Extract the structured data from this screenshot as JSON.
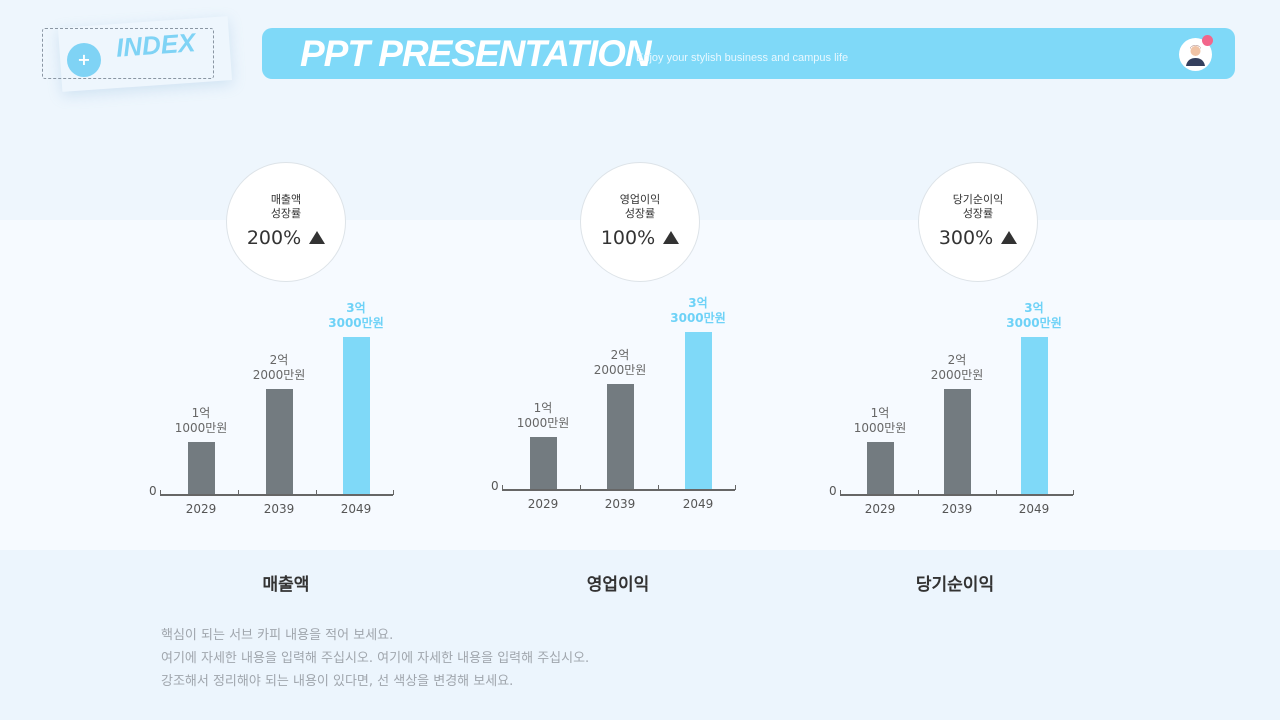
{
  "header": {
    "index_label": "INDEX",
    "title": "PPT PRESENTATION",
    "subtitle": "Enjoy your stylish business and campus life"
  },
  "colors": {
    "accent": "#7fd9f8",
    "bar_gray": "#737b80",
    "bar_highlight": "#7fd9f8",
    "notification": "#f2668b"
  },
  "icons": {
    "index": "plus-icon",
    "avatar": "user-avatar-icon",
    "growth": "triangle-up-icon"
  },
  "chart_data": [
    {
      "type": "bar",
      "title": "매출액",
      "categories": [
        "2029",
        "2039",
        "2049"
      ],
      "values": [
        11000,
        22000,
        33000
      ],
      "unit": "만원",
      "data_labels": [
        [
          "1억",
          "1000만원"
        ],
        [
          "2억",
          "2000만원"
        ],
        [
          "3억",
          "3000만원"
        ]
      ],
      "y_tick": "0",
      "highlight_index": 2,
      "growth": {
        "label_lines": [
          "매출액",
          "성장률"
        ],
        "value": "200%"
      }
    },
    {
      "type": "bar",
      "title": "영업이익",
      "categories": [
        "2029",
        "2039",
        "2049"
      ],
      "values": [
        11000,
        22000,
        33000
      ],
      "unit": "만원",
      "data_labels": [
        [
          "1억",
          "1000만원"
        ],
        [
          "2억",
          "2000만원"
        ],
        [
          "3억",
          "3000만원"
        ]
      ],
      "y_tick": "0",
      "highlight_index": 2,
      "growth": {
        "label_lines": [
          "영업이익",
          "성장률"
        ],
        "value": "100%"
      }
    },
    {
      "type": "bar",
      "title": "당기순이익",
      "categories": [
        "2029",
        "2039",
        "2049"
      ],
      "values": [
        11000,
        22000,
        33000
      ],
      "unit": "만원",
      "data_labels": [
        [
          "1억",
          "1000만원"
        ],
        [
          "2억",
          "2000만원"
        ],
        [
          "3억",
          "3000만원"
        ]
      ],
      "y_tick": "0",
      "highlight_index": 2,
      "growth": {
        "label_lines": [
          "당기순이익",
          "성장률"
        ],
        "value": "300%"
      }
    }
  ],
  "description": [
    "핵심이 되는 서브 카피 내용을 적어 보세요.",
    "여기에 자세한 내용을 입력해 주십시오. 여기에 자세한 내용을 입력해 주십시오.",
    "강조해서 정리해야 되는 내용이 있다면, 선 색상을 변경해 보세요."
  ]
}
